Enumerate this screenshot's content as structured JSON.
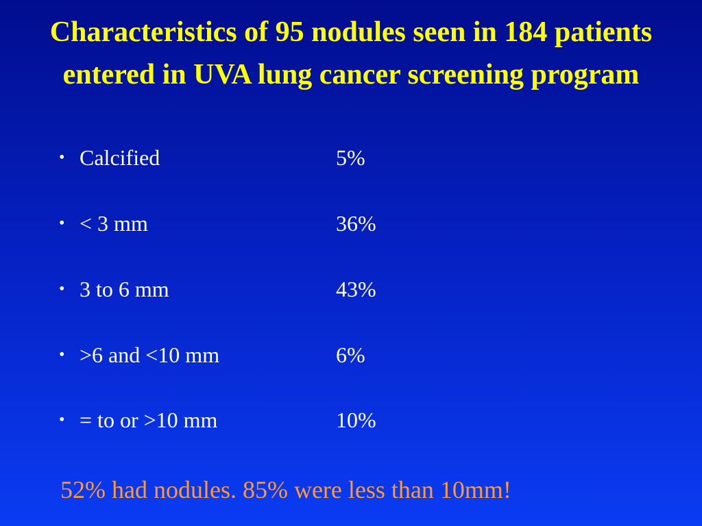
{
  "title": "Characteristics of 95 nodules seen in 184 patients entered in UVA lung cancer screening program",
  "bullet_glyph": "•",
  "items": [
    {
      "label": "Calcified",
      "value": "5%"
    },
    {
      "label": "< 3 mm",
      "value": "36%"
    },
    {
      "label": "3 to 6 mm",
      "value": "43%"
    },
    {
      "label": ">6 and <10 mm",
      "value": "6%"
    },
    {
      "label": "= to or >10 mm",
      "value": "10%"
    }
  ],
  "footer": "52% had nodules. 85% were less than 10mm!",
  "colors": {
    "background_top": "#010d8f",
    "background_bottom": "#0a3cf3",
    "title": "#ffff00",
    "body_text": "#ffffff",
    "footer": "#ff9933"
  }
}
